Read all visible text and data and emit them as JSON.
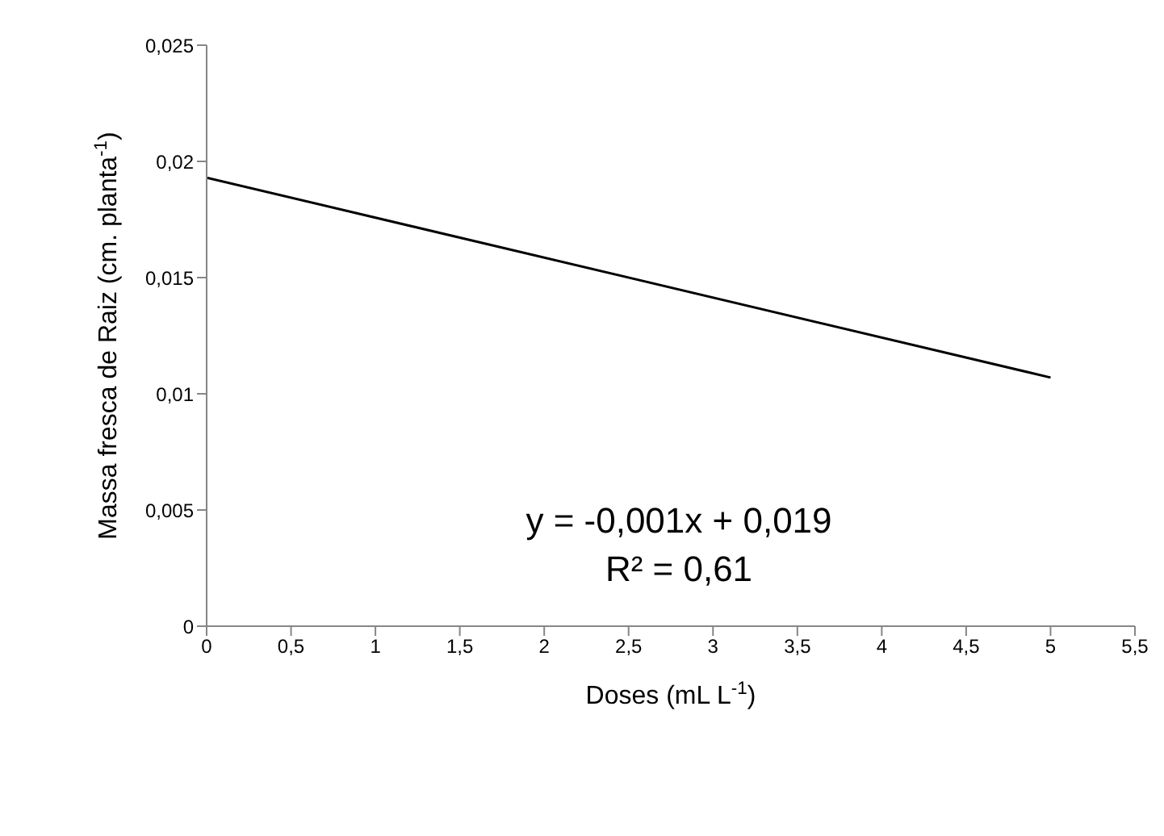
{
  "chart_data": {
    "type": "line",
    "xlabel": "Doses (mL L$^{-1}$)",
    "ylabel": "Massa fresca de Raiz (cm. planta$^{-1}$)",
    "x": [
      0,
      5
    ],
    "series": [
      {
        "color": "#000000",
        "values": [
          0.0193,
          0.0107
        ]
      }
    ],
    "xlim": [
      0,
      5.5
    ],
    "xticks": [
      0,
      {
        "value": 0.5,
        "label": "0,5"
      },
      1,
      {
        "value": 1.5,
        "label": "1,5"
      },
      2,
      {
        "value": 2.5,
        "label": "2,5"
      },
      3,
      {
        "value": 3.5,
        "label": "3,5"
      },
      4,
      {
        "value": 4.5,
        "label": "4,5"
      },
      5,
      {
        "value": 5.5,
        "label": "5,5"
      }
    ],
    "ylim": [
      0,
      0.025
    ],
    "yticks": [
      0,
      {
        "value": 0.005,
        "label": "0,005"
      },
      {
        "value": 0.01,
        "label": "0,01"
      },
      {
        "value": 0.015,
        "label": "0,015"
      },
      {
        "value": 0.02,
        "label": "0,02"
      },
      {
        "value": 0.025,
        "label": "0,025"
      }
    ],
    "annotations": [
      "y = -0,001x + 0,019",
      "R² = 0,61"
    ],
    "grid": false,
    "legend": false,
    "marker": "none",
    "line_style": "solid"
  }
}
